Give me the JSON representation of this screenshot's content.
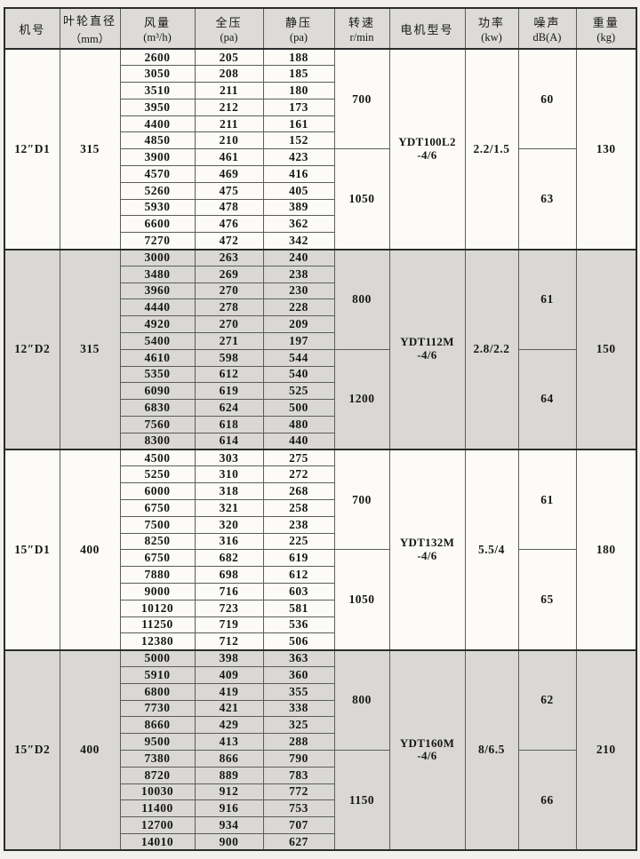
{
  "table": {
    "headers": [
      {
        "name": "model",
        "line1": "机号",
        "line2": ""
      },
      {
        "name": "diameter",
        "line1": "叶轮直径",
        "line2": "（mm）"
      },
      {
        "name": "airflow",
        "line1": "风量",
        "line2": "(m³/h)"
      },
      {
        "name": "total-pressure",
        "line1": "全压",
        "line2": "(pa)"
      },
      {
        "name": "static-pressure",
        "line1": "静压",
        "line2": "(pa)"
      },
      {
        "name": "speed",
        "line1": "转速",
        "line2": "r/min"
      },
      {
        "name": "motor-model",
        "line1": "电机型号",
        "line2": ""
      },
      {
        "name": "power",
        "line1": "功率",
        "line2": "(kw)"
      },
      {
        "name": "noise",
        "line1": "噪声",
        "line2": "dB(A)"
      },
      {
        "name": "weight",
        "line1": "重量",
        "line2": "(kg)"
      }
    ],
    "sections": [
      {
        "model": "12″D1",
        "diameter": "315",
        "motor_line1": "YDT100L2",
        "motor_line2": "-4/6",
        "power": "2.2/1.5",
        "weight": "130",
        "shaded": false,
        "groups": [
          {
            "speed": "700",
            "noise": "60",
            "rows": [
              [
                2600,
                205,
                188
              ],
              [
                3050,
                208,
                185
              ],
              [
                3510,
                211,
                180
              ],
              [
                3950,
                212,
                173
              ],
              [
                4400,
                211,
                161
              ],
              [
                4850,
                210,
                152
              ]
            ]
          },
          {
            "speed": "1050",
            "noise": "63",
            "rows": [
              [
                3900,
                461,
                423
              ],
              [
                4570,
                469,
                416
              ],
              [
                5260,
                475,
                405
              ],
              [
                5930,
                478,
                389
              ],
              [
                6600,
                476,
                362
              ],
              [
                7270,
                472,
                342
              ]
            ]
          }
        ]
      },
      {
        "model": "12″D2",
        "diameter": "315",
        "motor_line1": "YDT112M",
        "motor_line2": "-4/6",
        "power": "2.8/2.2",
        "weight": "150",
        "shaded": true,
        "groups": [
          {
            "speed": "800",
            "noise": "61",
            "rows": [
              [
                3000,
                263,
                240
              ],
              [
                3480,
                269,
                238
              ],
              [
                3960,
                270,
                230
              ],
              [
                4440,
                278,
                228
              ],
              [
                4920,
                270,
                209
              ],
              [
                5400,
                271,
                197
              ]
            ]
          },
          {
            "speed": "1200",
            "noise": "64",
            "rows": [
              [
                4610,
                598,
                544
              ],
              [
                5350,
                612,
                540
              ],
              [
                6090,
                619,
                525
              ],
              [
                6830,
                624,
                500
              ],
              [
                7560,
                618,
                480
              ],
              [
                8300,
                614,
                440
              ]
            ]
          }
        ]
      },
      {
        "model": "15″D1",
        "diameter": "400",
        "motor_line1": "YDT132M",
        "motor_line2": "-4/6",
        "power": "5.5/4",
        "weight": "180",
        "shaded": false,
        "groups": [
          {
            "speed": "700",
            "noise": "61",
            "rows": [
              [
                4500,
                303,
                275
              ],
              [
                5250,
                310,
                272
              ],
              [
                6000,
                318,
                268
              ],
              [
                6750,
                321,
                258
              ],
              [
                7500,
                320,
                238
              ],
              [
                8250,
                316,
                225
              ]
            ]
          },
          {
            "speed": "1050",
            "noise": "65",
            "rows": [
              [
                6750,
                682,
                619
              ],
              [
                7880,
                698,
                612
              ],
              [
                9000,
                716,
                603
              ],
              [
                10120,
                723,
                581
              ],
              [
                11250,
                719,
                536
              ],
              [
                12380,
                712,
                506
              ]
            ]
          }
        ]
      },
      {
        "model": "15″D2",
        "diameter": "400",
        "motor_line1": "YDT160M",
        "motor_line2": "-4/6",
        "power": "8/6.5",
        "weight": "210",
        "shaded": true,
        "groups": [
          {
            "speed": "800",
            "noise": "62",
            "rows": [
              [
                5000,
                398,
                363
              ],
              [
                5910,
                409,
                360
              ],
              [
                6800,
                419,
                355
              ],
              [
                7730,
                421,
                338
              ],
              [
                8660,
                429,
                325
              ],
              [
                9500,
                413,
                288
              ]
            ]
          },
          {
            "speed": "1150",
            "noise": "66",
            "rows": [
              [
                7380,
                866,
                790
              ],
              [
                8720,
                889,
                783
              ],
              [
                10030,
                912,
                772
              ],
              [
                11400,
                916,
                753
              ],
              [
                12700,
                934,
                707
              ],
              [
                14010,
                900,
                627
              ]
            ]
          }
        ]
      }
    ]
  },
  "colors": {
    "page_bg": "#f1f0ed",
    "table_bg": "#fcfbf8",
    "header_bg": "#dcdbd8",
    "shaded_section_bg": "#d9d8d4",
    "border_dark": "#2b2b2b",
    "border_light": "#5c5c5c",
    "text": "#161616"
  }
}
